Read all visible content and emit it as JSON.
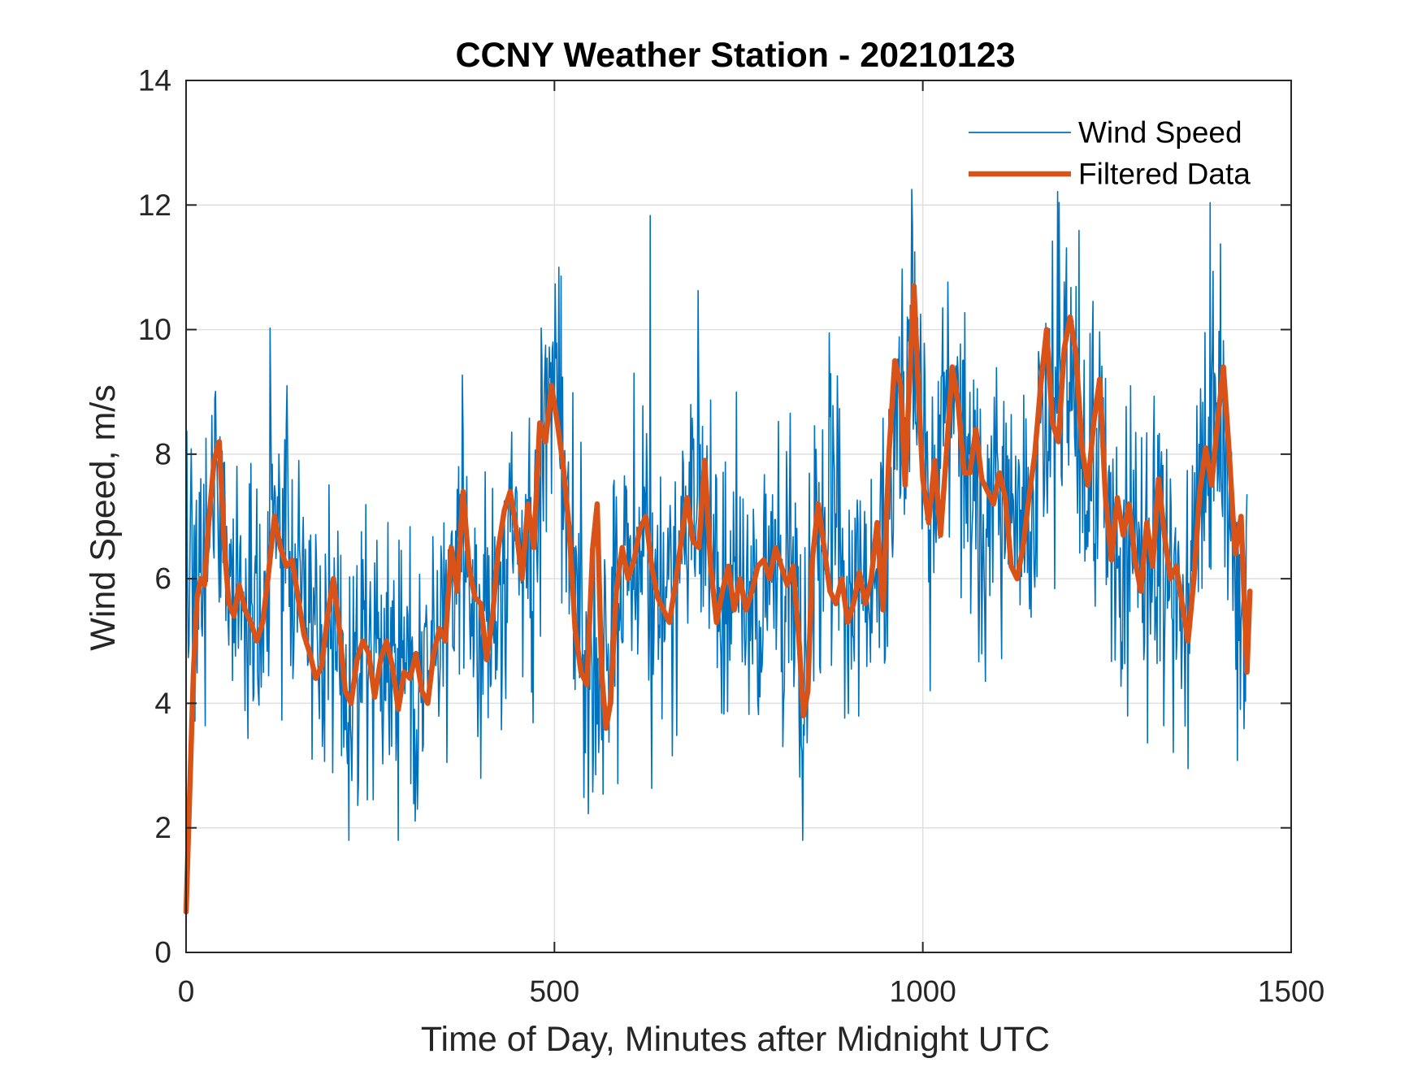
{
  "chart_data": {
    "type": "line",
    "title": "CCNY Weather Station - 20210123",
    "xlabel": "Time of Day, Minutes after Midnight UTC",
    "ylabel": "Wind Speed, m/s",
    "xlim": [
      0,
      1500
    ],
    "ylim": [
      0,
      14
    ],
    "xticks": [
      0,
      500,
      1000,
      1500
    ],
    "yticks": [
      0,
      2,
      4,
      6,
      8,
      10,
      12,
      14
    ],
    "grid": true,
    "legend_position": "top-right",
    "series": [
      {
        "name": "Wind Speed",
        "color": "#0072BD",
        "line_width": "thin",
        "generator": {
          "sample_interval_minutes": 1,
          "count": 1441,
          "seed": 20210123,
          "noise_std_ms": 1.15
        },
        "anchors": [
          [
            0,
            6.5
          ],
          [
            10,
            6.0
          ],
          [
            20,
            6.5
          ],
          [
            40,
            8.0
          ],
          [
            60,
            5.5
          ],
          [
            80,
            5.8
          ],
          [
            100,
            5.2
          ],
          [
            120,
            6.8
          ],
          [
            150,
            6.0
          ],
          [
            170,
            5.0
          ],
          [
            200,
            4.8
          ],
          [
            220,
            4.2
          ],
          [
            250,
            4.9
          ],
          [
            280,
            4.5
          ],
          [
            300,
            4.3
          ],
          [
            330,
            4.5
          ],
          [
            350,
            5.5
          ],
          [
            375,
            7.0
          ],
          [
            400,
            5.5
          ],
          [
            420,
            5.0
          ],
          [
            440,
            6.8
          ],
          [
            470,
            6.5
          ],
          [
            490,
            8.8
          ],
          [
            510,
            8.0
          ],
          [
            530,
            5.0
          ],
          [
            550,
            4.8
          ],
          [
            565,
            4.0
          ],
          [
            590,
            6.5
          ],
          [
            620,
            7.0
          ],
          [
            650,
            5.5
          ],
          [
            680,
            7.0
          ],
          [
            700,
            7.5
          ],
          [
            720,
            5.5
          ],
          [
            760,
            5.8
          ],
          [
            800,
            6.2
          ],
          [
            820,
            6.0
          ],
          [
            835,
            4.0
          ],
          [
            850,
            6.5
          ],
          [
            880,
            7.5
          ],
          [
            900,
            5.5
          ],
          [
            930,
            6.0
          ],
          [
            950,
            6.5
          ],
          [
            970,
            9.0
          ],
          [
            990,
            9.8
          ],
          [
            1010,
            7.2
          ],
          [
            1040,
            9.0
          ],
          [
            1060,
            7.8
          ],
          [
            1090,
            7.3
          ],
          [
            1110,
            7.6
          ],
          [
            1140,
            6.8
          ],
          [
            1160,
            8.0
          ],
          [
            1180,
            9.5
          ],
          [
            1200,
            9.5
          ],
          [
            1220,
            7.5
          ],
          [
            1240,
            8.0
          ],
          [
            1260,
            6.6
          ],
          [
            1290,
            6.6
          ],
          [
            1320,
            6.0
          ],
          [
            1360,
            5.5
          ],
          [
            1380,
            7.5
          ],
          [
            1400,
            8.8
          ],
          [
            1420,
            6.8
          ],
          [
            1440,
            5.2
          ]
        ]
      },
      {
        "name": "Filtered Data",
        "color": "#D95319",
        "line_width": "thick",
        "points": [
          [
            0,
            0.65
          ],
          [
            5,
            2.6
          ],
          [
            10,
            4.5
          ],
          [
            15,
            5.7
          ],
          [
            20,
            6.0
          ],
          [
            25,
            5.9
          ],
          [
            30,
            6.8
          ],
          [
            38,
            7.9
          ],
          [
            45,
            8.2
          ],
          [
            52,
            6.5
          ],
          [
            58,
            5.6
          ],
          [
            65,
            5.4
          ],
          [
            72,
            5.9
          ],
          [
            80,
            5.5
          ],
          [
            88,
            5.3
          ],
          [
            96,
            5.0
          ],
          [
            104,
            5.3
          ],
          [
            112,
            6.1
          ],
          [
            120,
            7.0
          ],
          [
            128,
            6.5
          ],
          [
            136,
            6.2
          ],
          [
            144,
            6.3
          ],
          [
            152,
            5.7
          ],
          [
            160,
            5.1
          ],
          [
            168,
            4.8
          ],
          [
            176,
            4.4
          ],
          [
            184,
            4.6
          ],
          [
            192,
            5.4
          ],
          [
            200,
            6.0
          ],
          [
            208,
            5.2
          ],
          [
            216,
            4.2
          ],
          [
            224,
            4.0
          ],
          [
            232,
            4.7
          ],
          [
            240,
            5.0
          ],
          [
            248,
            4.8
          ],
          [
            256,
            4.1
          ],
          [
            264,
            4.7
          ],
          [
            272,
            5.0
          ],
          [
            280,
            4.6
          ],
          [
            288,
            3.9
          ],
          [
            296,
            4.5
          ],
          [
            304,
            4.4
          ],
          [
            312,
            4.8
          ],
          [
            320,
            4.2
          ],
          [
            328,
            4.0
          ],
          [
            336,
            4.8
          ],
          [
            344,
            5.2
          ],
          [
            352,
            5.0
          ],
          [
            360,
            6.5
          ],
          [
            368,
            5.8
          ],
          [
            376,
            7.4
          ],
          [
            384,
            6.2
          ],
          [
            392,
            5.7
          ],
          [
            400,
            5.6
          ],
          [
            408,
            4.7
          ],
          [
            416,
            5.4
          ],
          [
            424,
            6.5
          ],
          [
            432,
            7.1
          ],
          [
            440,
            7.4
          ],
          [
            448,
            6.8
          ],
          [
            456,
            6.0
          ],
          [
            464,
            7.2
          ],
          [
            472,
            6.5
          ],
          [
            480,
            8.5
          ],
          [
            488,
            8.2
          ],
          [
            496,
            9.1
          ],
          [
            504,
            8.5
          ],
          [
            512,
            7.8
          ],
          [
            520,
            6.8
          ],
          [
            528,
            5.2
          ],
          [
            536,
            4.5
          ],
          [
            544,
            4.3
          ],
          [
            552,
            6.5
          ],
          [
            558,
            7.2
          ],
          [
            564,
            4.5
          ],
          [
            570,
            3.6
          ],
          [
            576,
            4.0
          ],
          [
            584,
            5.8
          ],
          [
            592,
            6.5
          ],
          [
            600,
            6.0
          ],
          [
            608,
            6.3
          ],
          [
            616,
            6.8
          ],
          [
            624,
            7.0
          ],
          [
            632,
            6.2
          ],
          [
            640,
            5.7
          ],
          [
            648,
            5.5
          ],
          [
            656,
            5.3
          ],
          [
            664,
            5.9
          ],
          [
            672,
            6.6
          ],
          [
            680,
            7.3
          ],
          [
            688,
            6.6
          ],
          [
            696,
            6.5
          ],
          [
            704,
            7.9
          ],
          [
            712,
            6.2
          ],
          [
            720,
            5.3
          ],
          [
            728,
            5.8
          ],
          [
            736,
            6.2
          ],
          [
            744,
            5.5
          ],
          [
            752,
            6.0
          ],
          [
            760,
            5.5
          ],
          [
            768,
            5.8
          ],
          [
            776,
            6.2
          ],
          [
            784,
            6.3
          ],
          [
            792,
            6.0
          ],
          [
            800,
            6.5
          ],
          [
            808,
            6.2
          ],
          [
            816,
            5.9
          ],
          [
            824,
            6.2
          ],
          [
            832,
            5.0
          ],
          [
            838,
            3.8
          ],
          [
            844,
            4.2
          ],
          [
            850,
            6.3
          ],
          [
            858,
            7.2
          ],
          [
            866,
            6.5
          ],
          [
            874,
            5.8
          ],
          [
            882,
            5.6
          ],
          [
            890,
            6.0
          ],
          [
            898,
            5.3
          ],
          [
            906,
            5.6
          ],
          [
            914,
            6.1
          ],
          [
            922,
            5.6
          ],
          [
            930,
            6.0
          ],
          [
            938,
            6.9
          ],
          [
            946,
            5.5
          ],
          [
            954,
            8.0
          ],
          [
            962,
            9.5
          ],
          [
            970,
            9.1
          ],
          [
            976,
            7.5
          ],
          [
            982,
            9.2
          ],
          [
            988,
            10.7
          ],
          [
            994,
            9.0
          ],
          [
            1000,
            7.6
          ],
          [
            1008,
            6.9
          ],
          [
            1016,
            7.9
          ],
          [
            1024,
            6.7
          ],
          [
            1032,
            8.0
          ],
          [
            1040,
            9.4
          ],
          [
            1048,
            8.8
          ],
          [
            1056,
            7.7
          ],
          [
            1064,
            7.7
          ],
          [
            1072,
            8.4
          ],
          [
            1080,
            7.6
          ],
          [
            1088,
            7.4
          ],
          [
            1096,
            7.2
          ],
          [
            1104,
            7.7
          ],
          [
            1112,
            7.3
          ],
          [
            1120,
            6.2
          ],
          [
            1128,
            6.0
          ],
          [
            1136,
            6.5
          ],
          [
            1144,
            7.3
          ],
          [
            1152,
            8.0
          ],
          [
            1160,
            9.1
          ],
          [
            1168,
            10.0
          ],
          [
            1176,
            8.5
          ],
          [
            1184,
            8.2
          ],
          [
            1192,
            9.7
          ],
          [
            1200,
            10.2
          ],
          [
            1208,
            9.6
          ],
          [
            1216,
            8.1
          ],
          [
            1224,
            7.5
          ],
          [
            1232,
            8.5
          ],
          [
            1240,
            9.2
          ],
          [
            1248,
            7.3
          ],
          [
            1256,
            6.3
          ],
          [
            1264,
            7.3
          ],
          [
            1272,
            6.7
          ],
          [
            1280,
            7.2
          ],
          [
            1288,
            6.3
          ],
          [
            1296,
            5.8
          ],
          [
            1304,
            6.9
          ],
          [
            1312,
            6.2
          ],
          [
            1320,
            7.6
          ],
          [
            1328,
            6.7
          ],
          [
            1336,
            6.0
          ],
          [
            1344,
            6.2
          ],
          [
            1352,
            5.6
          ],
          [
            1360,
            5.0
          ],
          [
            1368,
            6.0
          ],
          [
            1376,
            7.4
          ],
          [
            1384,
            8.1
          ],
          [
            1392,
            7.5
          ],
          [
            1400,
            8.5
          ],
          [
            1408,
            9.4
          ],
          [
            1416,
            8.0
          ],
          [
            1424,
            6.4
          ],
          [
            1432,
            7.0
          ],
          [
            1440,
            4.5
          ],
          [
            1444,
            5.8
          ]
        ]
      }
    ]
  }
}
